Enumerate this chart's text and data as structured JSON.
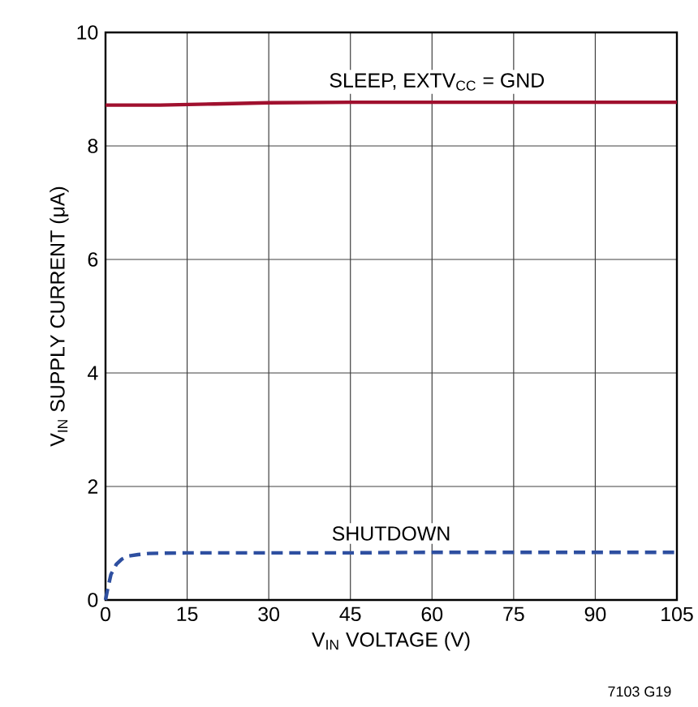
{
  "chart_data": {
    "type": "line",
    "xlabel": "V$_{IN}$ VOLTAGE (V)",
    "ylabel": "V$_{IN}$ SUPPLY CURRENT (μA)",
    "xlim": [
      0,
      105
    ],
    "xticks": [
      0,
      15,
      30,
      45,
      60,
      75,
      90,
      105
    ],
    "ylim": [
      0,
      10
    ],
    "yticks": [
      0,
      2,
      4,
      6,
      8,
      10
    ],
    "grid": true,
    "legend": false,
    "series": [
      {
        "name": "SLEEP, EXTV$_{CC}$ = GND",
        "color": "#a0102e",
        "line_style": "solid",
        "x": [
          0,
          10,
          20,
          30,
          45,
          60,
          75,
          90,
          105
        ],
        "values": [
          8.72,
          8.72,
          8.74,
          8.76,
          8.77,
          8.77,
          8.77,
          8.77,
          8.77
        ]
      },
      {
        "name": "SHUTDOWN",
        "color": "#2e4fa0",
        "line_style": "dashed",
        "x": [
          0,
          0.3,
          1,
          2,
          3,
          4,
          6,
          8,
          15,
          30,
          45,
          60,
          75,
          90,
          105
        ],
        "values": [
          0,
          0.15,
          0.45,
          0.63,
          0.72,
          0.77,
          0.8,
          0.82,
          0.83,
          0.83,
          0.83,
          0.84,
          0.84,
          0.84,
          0.84
        ]
      }
    ],
    "annotations": [
      "7103 G19"
    ]
  }
}
